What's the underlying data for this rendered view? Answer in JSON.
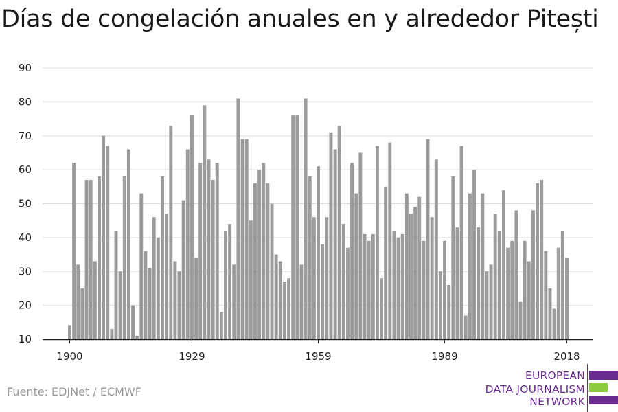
{
  "colors": {
    "bar": "#9b9b9b",
    "grid": "#dddddd",
    "axis": "#222222",
    "brand_purple": "#6b2c91",
    "brand_green": "#8ccc3c"
  },
  "footer": {
    "source": "Fuente: EDJNet / ECMWF"
  },
  "logo": {
    "line1": "EUROPEAN",
    "line2": "DATA JOURNALISM",
    "line3": "NETWORK"
  },
  "chart_data": {
    "type": "bar",
    "title": "Días de congelación anuales en y alrededor Pitești",
    "xlabel": "",
    "ylabel": "",
    "ylim": [
      10,
      90
    ],
    "yticks": [
      10,
      20,
      30,
      40,
      50,
      60,
      70,
      80,
      90
    ],
    "xticks": [
      1900,
      1929,
      1959,
      1989,
      2018
    ],
    "grid": true,
    "x": [
      1900,
      1901,
      1902,
      1903,
      1904,
      1905,
      1906,
      1907,
      1908,
      1909,
      1910,
      1911,
      1912,
      1913,
      1914,
      1915,
      1916,
      1917,
      1918,
      1919,
      1920,
      1921,
      1922,
      1923,
      1924,
      1925,
      1926,
      1927,
      1928,
      1929,
      1930,
      1931,
      1932,
      1933,
      1934,
      1935,
      1936,
      1937,
      1938,
      1939,
      1940,
      1941,
      1942,
      1943,
      1944,
      1945,
      1946,
      1947,
      1948,
      1949,
      1950,
      1951,
      1952,
      1953,
      1954,
      1955,
      1956,
      1957,
      1958,
      1959,
      1960,
      1961,
      1962,
      1963,
      1964,
      1965,
      1966,
      1967,
      1968,
      1969,
      1970,
      1971,
      1972,
      1973,
      1974,
      1975,
      1976,
      1977,
      1978,
      1979,
      1980,
      1981,
      1982,
      1983,
      1984,
      1985,
      1986,
      1987,
      1988,
      1989,
      1990,
      1991,
      1992,
      1993,
      1994,
      1995,
      1996,
      1997,
      1998,
      1999,
      2000,
      2001,
      2002,
      2003,
      2004,
      2005,
      2006,
      2007,
      2008,
      2009,
      2010,
      2011,
      2012,
      2013,
      2014,
      2015,
      2016,
      2017,
      2018
    ],
    "values": [
      14,
      62,
      32,
      25,
      57,
      57,
      33,
      58,
      70,
      67,
      13,
      42,
      30,
      58,
      66,
      20,
      11,
      53,
      36,
      31,
      46,
      40,
      58,
      47,
      73,
      33,
      30,
      51,
      66,
      76,
      34,
      62,
      79,
      63,
      57,
      62,
      18,
      42,
      44,
      32,
      81,
      69,
      69,
      45,
      56,
      60,
      62,
      56,
      50,
      35,
      33,
      27,
      28,
      76,
      76,
      32,
      81,
      58,
      46,
      61,
      38,
      46,
      71,
      66,
      73,
      44,
      37,
      62,
      53,
      65,
      41,
      39,
      41,
      67,
      28,
      55,
      68,
      42,
      40,
      41,
      53,
      47,
      49,
      52,
      39,
      69,
      46,
      63,
      30,
      39,
      26,
      58,
      43,
      67,
      17,
      53,
      60,
      43,
      53,
      30,
      32,
      47,
      42,
      54,
      37,
      39,
      48,
      21,
      39,
      33,
      48,
      56,
      57,
      36,
      25,
      19,
      37,
      42,
      34
    ]
  }
}
